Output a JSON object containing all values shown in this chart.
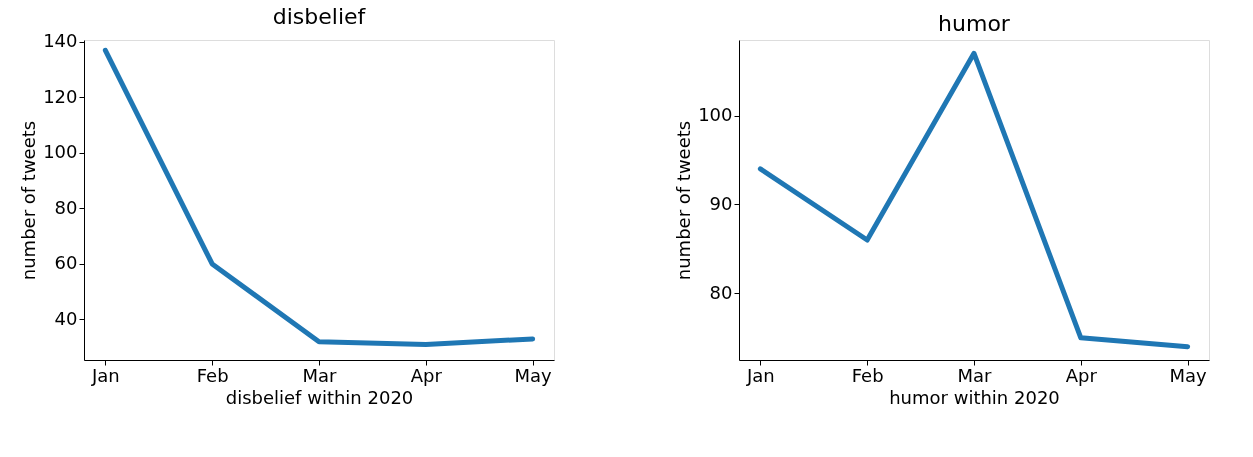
{
  "chart_data": [
    {
      "type": "line",
      "title": "disbelief",
      "xlabel": "disbelief within 2020",
      "ylabel": "number of tweets",
      "categories": [
        "Jan",
        "Feb",
        "Mar",
        "Apr",
        "May"
      ],
      "series": [
        {
          "color": "#1f77b4",
          "values": [
            137,
            60,
            32,
            31,
            33
          ]
        }
      ],
      "ylim": [
        25.4,
        140.7
      ],
      "yticks": [
        40,
        60,
        80,
        100,
        120,
        140
      ],
      "grid": false,
      "marker": "none",
      "line_style": "solid"
    },
    {
      "type": "line",
      "title": "humor",
      "xlabel": "humor within 2020",
      "ylabel": "number of tweets",
      "categories": [
        "Jan",
        "Feb",
        "Mar",
        "Apr",
        "May"
      ],
      "series": [
        {
          "color": "#1f77b4",
          "values": [
            94,
            86,
            107,
            75,
            74
          ]
        }
      ],
      "ylim": [
        72.5,
        108.5
      ],
      "yticks": [
        80,
        90,
        100
      ],
      "grid": false,
      "marker": "none",
      "line_style": "solid"
    }
  ]
}
